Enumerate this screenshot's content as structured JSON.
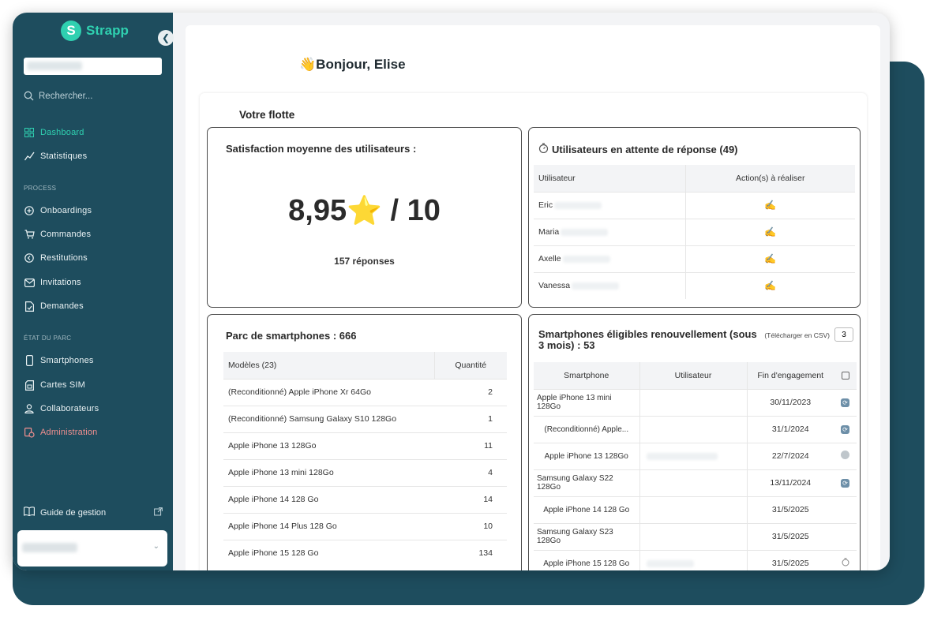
{
  "app": {
    "name": "Strapp",
    "logo_letter": "S",
    "accent": "#2fd0b0",
    "sidebar_bg": "#1e4d5e"
  },
  "sidebar": {
    "search_placeholder": "Rechercher...",
    "nav_main": [
      {
        "label": "Dashboard",
        "icon": "dashboard-icon",
        "active": true
      },
      {
        "label": "Statistiques",
        "icon": "chart-line-icon"
      }
    ],
    "section_process": "PROCESS",
    "nav_process": [
      {
        "label": "Onboardings",
        "icon": "plus-circle-icon"
      },
      {
        "label": "Commandes",
        "icon": "cart-icon"
      },
      {
        "label": "Restitutions",
        "icon": "return-circle-icon"
      },
      {
        "label": "Invitations",
        "icon": "mail-icon"
      },
      {
        "label": "Demandes",
        "icon": "document-icon"
      }
    ],
    "section_parc": "ÉTAT DU PARC",
    "nav_parc": [
      {
        "label": "Smartphones",
        "icon": "phone-icon"
      },
      {
        "label": "Cartes SIM",
        "icon": "sim-icon"
      },
      {
        "label": "Collaborateurs",
        "icon": "user-icon"
      },
      {
        "label": "Administration",
        "icon": "admin-icon"
      }
    ],
    "guide_label": "Guide de gestion"
  },
  "main": {
    "greeting": "Bonjour, Elise",
    "fleet_title": "Votre flotte",
    "satisfaction": {
      "title": "Satisfaction moyenne des utilisateurs :",
      "score": "8,95",
      "out_of": "/ 10",
      "responses": "157 réponses"
    },
    "pending": {
      "title": "Utilisateurs en attente de réponse (49)",
      "columns": [
        "Utilisateur",
        "Action(s) à réaliser"
      ],
      "rows": [
        {
          "user": "Eric"
        },
        {
          "user": "Maria"
        },
        {
          "user": "Axelle"
        },
        {
          "user": "Vanessa"
        }
      ]
    },
    "parc": {
      "title": "Parc de smartphones : 666",
      "columns": [
        "Modèles (23)",
        "Quantité"
      ],
      "rows": [
        {
          "model": "(Reconditionné) Apple iPhone Xr 64Go",
          "qty": "2"
        },
        {
          "model": "(Reconditionné) Samsung Galaxy S10 128Go",
          "qty": "1"
        },
        {
          "model": "Apple iPhone 13 128Go",
          "qty": "11"
        },
        {
          "model": "Apple iPhone 13 mini 128Go",
          "qty": "4"
        },
        {
          "model": "Apple iPhone 14 128 Go",
          "qty": "14"
        },
        {
          "model": "Apple iPhone 14 Plus 128 Go",
          "qty": "10"
        },
        {
          "model": "Apple iPhone 15 128 Go",
          "qty": "134"
        }
      ]
    },
    "renewal": {
      "title": "Smartphones éligibles renouvellement (sous 3 mois) : 53",
      "csv_label": "(Télécharger en CSV)",
      "csv_qty": "3",
      "columns": [
        "Smartphone",
        "Utilisateur",
        "Fin d'engagement"
      ],
      "rows": [
        {
          "phone": "Apple iPhone 13 mini 128Go",
          "date": "30/11/2023",
          "status": "sync"
        },
        {
          "phone": "(Reconditionné) Apple...",
          "date": "31/1/2024",
          "status": "sync"
        },
        {
          "phone": "Apple iPhone 13 128Go",
          "date": "22/7/2024",
          "status": "grey"
        },
        {
          "phone": "Samsung Galaxy S22 128Go",
          "date": "13/11/2024",
          "status": "sync"
        },
        {
          "phone": "Apple iPhone 14 128 Go",
          "date": "31/5/2025",
          "status": ""
        },
        {
          "phone": "Samsung Galaxy S23 128Go",
          "date": "31/5/2025",
          "status": ""
        },
        {
          "phone": "Apple iPhone 15 128 Go",
          "date": "31/5/2025",
          "status": "timer"
        }
      ]
    }
  }
}
